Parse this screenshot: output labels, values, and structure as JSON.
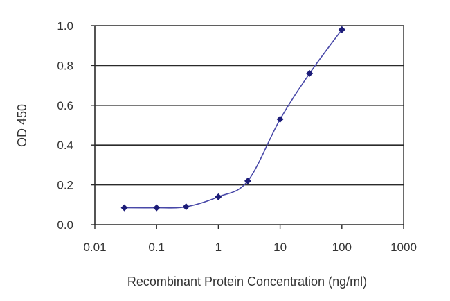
{
  "chart_data": {
    "type": "line",
    "title": "",
    "xlabel": "Recombinant Protein Concentration (ng/ml)",
    "ylabel": "OD 450",
    "x_scale": "log",
    "xlim": [
      0.01,
      1000
    ],
    "ylim": [
      0.0,
      1.0
    ],
    "x_ticks": [
      "0.01",
      "0.1",
      "1",
      "10",
      "100",
      "1000"
    ],
    "y_ticks": [
      "0.0",
      "0.2",
      "0.4",
      "0.6",
      "0.8",
      "1.0"
    ],
    "grid": "horizontal",
    "series": [
      {
        "x": [
          0.03,
          0.1,
          0.3,
          1,
          3,
          10,
          30,
          100
        ],
        "y": [
          0.085,
          0.085,
          0.09,
          0.14,
          0.22,
          0.53,
          0.76,
          0.98
        ]
      }
    ],
    "colors": {
      "line": "#4848a8",
      "marker": "#1c1c78",
      "grid": "#2a2a2a",
      "axis": "#2a2a2a"
    }
  }
}
